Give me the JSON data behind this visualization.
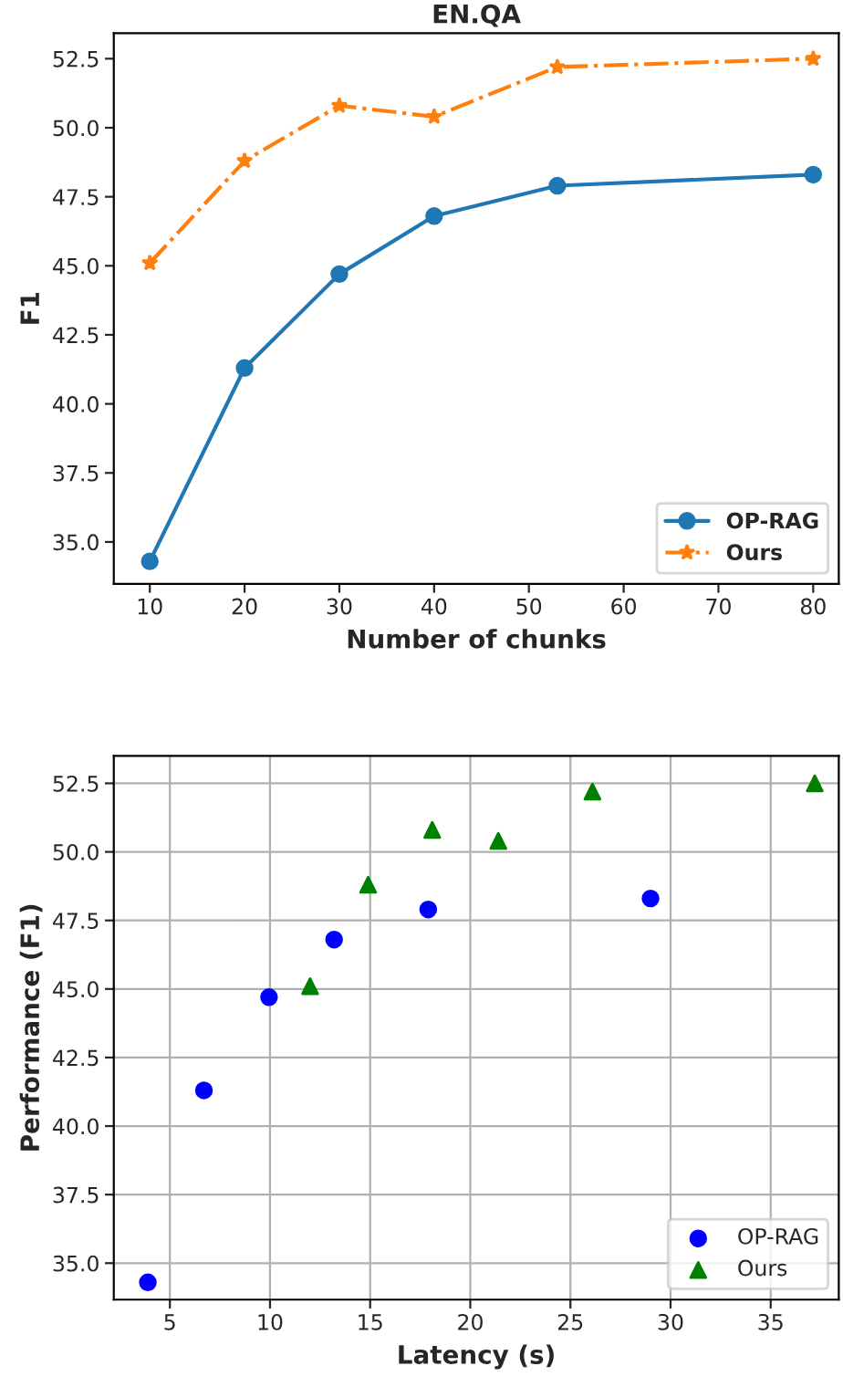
{
  "chart_data": [
    {
      "type": "line",
      "title": "EN.QA",
      "xlabel": "Number of chunks",
      "ylabel": "F1",
      "xlim": [
        6.2,
        82.7
      ],
      "ylim": [
        33.48,
        53.42
      ],
      "xticks": [
        10,
        20,
        30,
        40,
        50,
        60,
        70,
        80
      ],
      "yticks": [
        {
          "value": 35,
          "label": "35.0"
        },
        37.5,
        {
          "value": 40,
          "label": "40.0"
        },
        42.5,
        {
          "value": 45,
          "label": "45.0"
        },
        47.5,
        {
          "value": 50,
          "label": "50.0"
        },
        52.5
      ],
      "grid": false,
      "legend": "bottom right",
      "series": [
        {
          "name": "OP-RAG",
          "color": "#1f77b4",
          "marker": "circle",
          "line_style": "solid",
          "x": [
            10,
            20,
            30,
            40,
            53,
            80
          ],
          "values": [
            34.3,
            41.3,
            44.7,
            46.8,
            47.9,
            48.3
          ]
        },
        {
          "name": "Ours",
          "color": "#ff7f0e",
          "marker": "star",
          "line_style": "dashdot",
          "x": [
            10,
            20,
            30,
            40,
            53,
            80
          ],
          "values": [
            45.1,
            48.8,
            50.8,
            50.4,
            52.2,
            52.5
          ]
        }
      ]
    },
    {
      "type": "scatter",
      "xlabel": "Latency (s)",
      "ylabel": "Performance (F1)",
      "xlim": [
        2.2,
        38.4
      ],
      "ylim": [
        33.67,
        53.5
      ],
      "xticks": [
        5,
        10,
        15,
        20,
        25,
        30,
        35
      ],
      "yticks": [
        {
          "value": 35,
          "label": "35.0"
        },
        37.5,
        {
          "value": 40,
          "label": "40.0"
        },
        42.5,
        {
          "value": 45,
          "label": "45.0"
        },
        47.5,
        {
          "value": 50,
          "label": "50.0"
        },
        52.5
      ],
      "grid": true,
      "legend": "bottom right",
      "series": [
        {
          "name": "OP-RAG",
          "color": "#0000ff",
          "marker": "circle",
          "x": [
            3.9,
            6.7,
            9.95,
            13.2,
            17.9,
            29.0
          ],
          "values": [
            34.3,
            41.3,
            44.7,
            46.8,
            47.9,
            48.3
          ]
        },
        {
          "name": "Ours",
          "color": "#008000",
          "marker": "triangle",
          "x": [
            12.0,
            14.9,
            18.1,
            21.4,
            26.1,
            37.2
          ],
          "values": [
            45.1,
            48.8,
            50.8,
            50.4,
            52.2,
            52.5
          ]
        }
      ]
    }
  ]
}
